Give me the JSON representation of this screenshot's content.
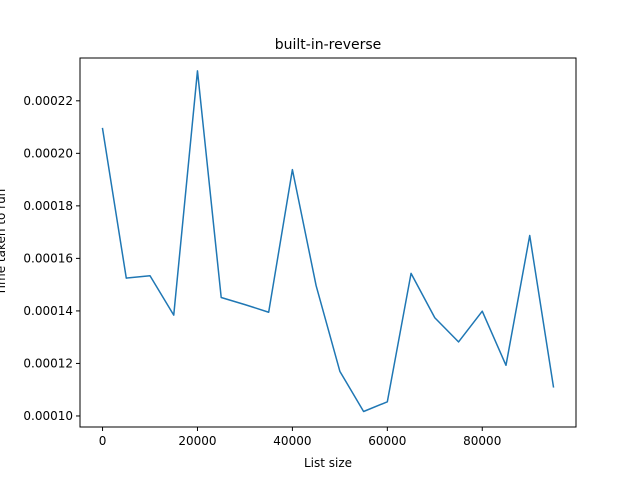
{
  "chart_data": {
    "type": "line",
    "title": "built-in-reverse",
    "xlabel": "List size",
    "ylabel": "Time taken to run",
    "xlim": [
      -4750,
      99750
    ],
    "ylim": [
      9.58e-05,
      0.0002363
    ],
    "x_ticks": [
      0,
      20000,
      40000,
      60000,
      80000
    ],
    "x_tick_labels": [
      "0",
      "20000",
      "40000",
      "60000",
      "80000"
    ],
    "y_ticks": [
      0.0001,
      0.00012,
      0.00014,
      0.00016,
      0.00018,
      0.0002,
      0.00022
    ],
    "y_tick_labels": [
      "0.00010",
      "0.00012",
      "0.00014",
      "0.00016",
      "0.00018",
      "0.00020",
      "0.00022"
    ],
    "grid": false,
    "series": [
      {
        "color": "#1f77b4",
        "x": [
          0,
          5000,
          10000,
          15000,
          20000,
          25000,
          30000,
          35000,
          40000,
          45000,
          50000,
          55000,
          60000,
          65000,
          70000,
          75000,
          80000,
          85000,
          90000,
          95000
        ],
        "values": [
          0.0002094,
          0.0001525,
          0.0001534,
          0.0001384,
          0.0002314,
          0.0001451,
          0.0001424,
          0.0001395,
          0.0001938,
          0.0001496,
          0.000117,
          0.0001017,
          0.0001054,
          0.0001543,
          0.0001374,
          0.0001282,
          0.0001399,
          0.0001193,
          0.0001687,
          0.0001111
        ]
      }
    ]
  }
}
